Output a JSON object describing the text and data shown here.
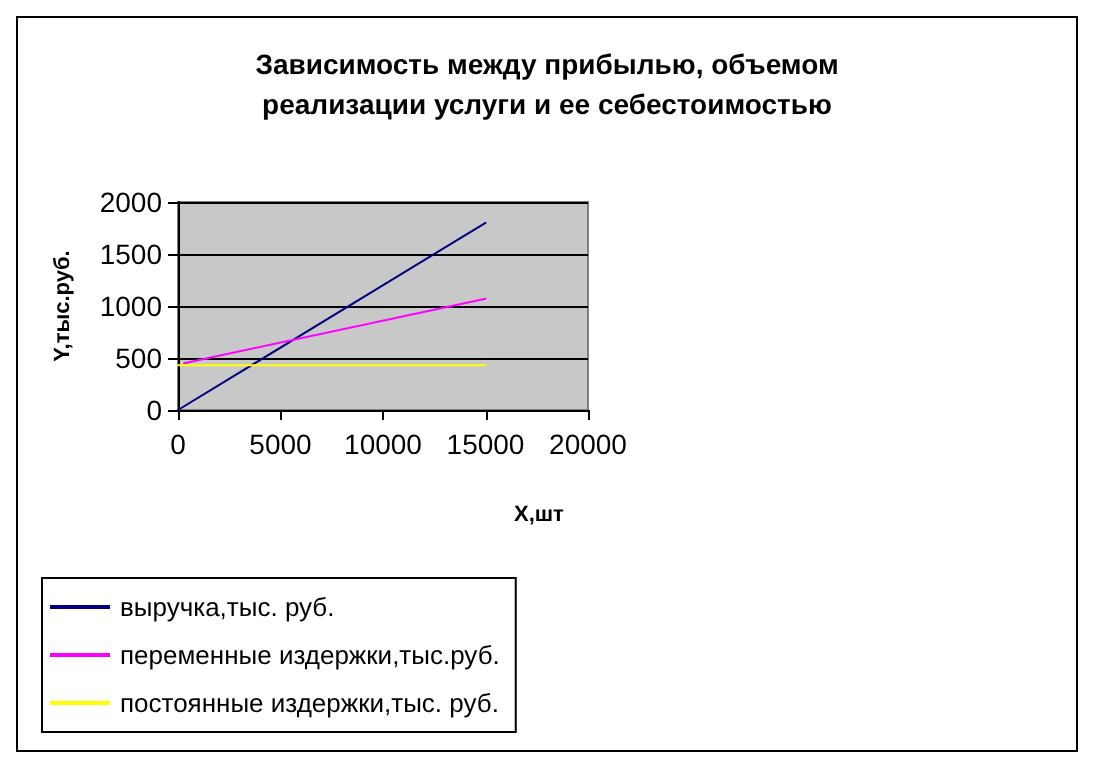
{
  "chart_data": {
    "type": "line",
    "title": "Зависимость между прибылью, объемом\nреализации услуги и ее себестоимостью",
    "xlabel": "Х,шт",
    "ylabel": "Y,тыс.руб.",
    "series": [
      {
        "name": "выручка,тыс. руб.",
        "color": "#000080",
        "x": [
          0,
          15000
        ],
        "values": [
          0,
          1800
        ]
      },
      {
        "name": "переменные издержки,тыс.руб.",
        "color": "#ff00ff",
        "x": [
          300,
          15000
        ],
        "values": [
          450,
          1070
        ]
      },
      {
        "name": "постоянные издержки,тыс. руб.",
        "color": "#ffff00",
        "x": [
          0,
          15000
        ],
        "values": [
          430,
          430
        ]
      }
    ],
    "xlim": [
      0,
      20000
    ],
    "xticks": [
      0,
      5000,
      10000,
      15000,
      20000
    ],
    "ylim": [
      0,
      2000
    ],
    "yticks": [
      0,
      500,
      1000,
      1500,
      2000
    ],
    "grid": "y",
    "legend": "bottom",
    "marker": "none",
    "line_style": "solid"
  }
}
